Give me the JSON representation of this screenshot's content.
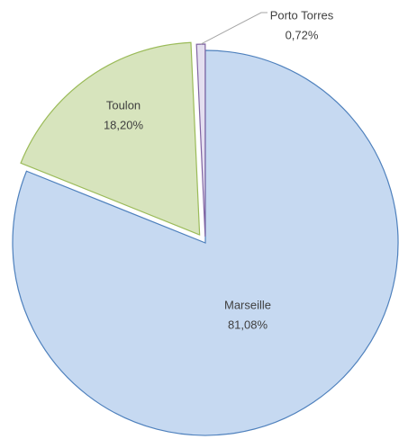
{
  "chart_data": {
    "type": "pie",
    "categories": [
      "Marseille",
      "Toulon",
      "Porto Torres"
    ],
    "values": [
      81.08,
      18.2,
      0.72
    ],
    "value_labels": [
      "81,08%",
      "18,20%",
      "0,72%"
    ],
    "colors": [
      "#c6d9f1",
      "#d7e4bd",
      "#e4dff0"
    ],
    "stroke_colors": [
      "#4f81bd",
      "#9bbb59",
      "#8064a2"
    ]
  }
}
